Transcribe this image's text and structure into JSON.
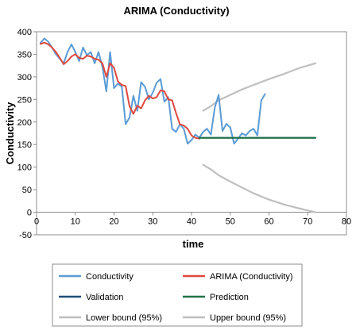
{
  "chart_data": {
    "type": "line",
    "title": "ARIMA (Conductivity)",
    "xlabel": "time",
    "ylabel": "Conductivity",
    "xlim": [
      0,
      80
    ],
    "ylim": [
      -50,
      400
    ],
    "xticks": [
      0,
      10,
      20,
      30,
      40,
      50,
      60,
      70,
      80
    ],
    "yticks": [
      -50,
      0,
      50,
      100,
      150,
      200,
      250,
      300,
      350,
      400
    ],
    "grid": false,
    "legend_position": "bottom",
    "series": [
      {
        "name": "Conductivity",
        "color": "#5B9BD5",
        "x": [
          1,
          2,
          3,
          4,
          5,
          6,
          7,
          8,
          9,
          10,
          11,
          12,
          13,
          14,
          15,
          16,
          17,
          18,
          19,
          20,
          21,
          22,
          23,
          24,
          25,
          26,
          27,
          28,
          29,
          30,
          31,
          32,
          33,
          34,
          35,
          36,
          37,
          38,
          39,
          40,
          41,
          42,
          43,
          44,
          45,
          46,
          47,
          48,
          49,
          50,
          51,
          52,
          53,
          54,
          55,
          56,
          57,
          58,
          59,
          60
        ],
        "y": [
          375,
          385,
          378,
          365,
          350,
          340,
          330,
          355,
          372,
          355,
          335,
          365,
          348,
          355,
          330,
          355,
          322,
          268,
          355,
          275,
          285,
          278,
          195,
          210,
          258,
          225,
          288,
          278,
          250,
          265,
          287,
          295,
          245,
          255,
          185,
          178,
          195,
          185,
          152,
          160,
          172,
          165,
          178,
          185,
          172,
          232,
          260,
          180,
          196,
          188,
          152,
          163,
          175,
          170,
          180,
          185,
          170,
          248,
          262,
          null
        ]
      },
      {
        "name": "ARIMA (Conductivity)",
        "color": "#E0483E",
        "x": [
          1,
          2,
          3,
          4,
          5,
          6,
          7,
          8,
          9,
          10,
          11,
          12,
          13,
          14,
          15,
          16,
          17,
          18,
          19,
          20,
          21,
          22,
          23,
          24,
          25,
          26,
          27,
          28,
          29,
          30,
          31,
          32,
          33,
          34,
          35,
          36,
          37,
          38,
          39,
          40,
          41,
          42
        ],
        "y": [
          373,
          376,
          372,
          365,
          355,
          342,
          328,
          335,
          345,
          350,
          342,
          340,
          347,
          345,
          340,
          338,
          330,
          300,
          330,
          320,
          290,
          282,
          280,
          235,
          218,
          236,
          230,
          248,
          258,
          252,
          255,
          270,
          268,
          250,
          248,
          220,
          195,
          192,
          185,
          170,
          165,
          163
        ]
      },
      {
        "name": "Validation",
        "color": "#1F4E79",
        "x": [
          42,
          72
        ],
        "y": [
          165,
          165
        ]
      },
      {
        "name": "Prediction",
        "color": "#217346",
        "x": [
          42,
          72
        ],
        "y": [
          165,
          165
        ]
      },
      {
        "name": "Lower bound (95%)",
        "color": "#BFBFBF",
        "x": [
          43,
          45,
          47,
          50,
          53,
          56,
          60,
          64,
          68,
          72
        ],
        "y": [
          105,
          95,
          82,
          68,
          55,
          42,
          28,
          17,
          8,
          0
        ]
      },
      {
        "name": "Upper bound (95%)",
        "color": "#BFBFBF",
        "x": [
          43,
          45,
          47,
          50,
          53,
          56,
          60,
          64,
          68,
          72
        ],
        "y": [
          225,
          235,
          248,
          260,
          272,
          282,
          295,
          307,
          320,
          330
        ]
      }
    ]
  }
}
